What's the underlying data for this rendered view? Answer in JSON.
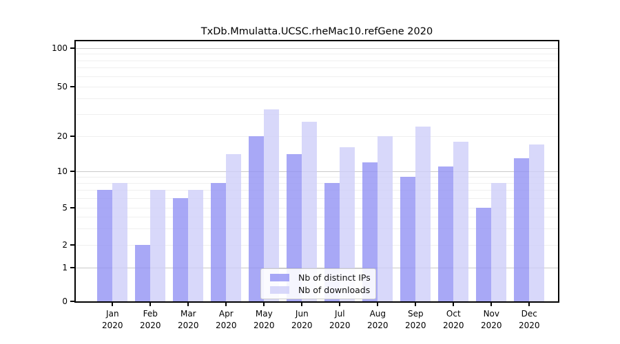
{
  "chart_data": {
    "type": "bar",
    "title": "TxDb.Mmulatta.UCSC.rheMac10.refGene 2020",
    "categories": [
      "Jan",
      "Feb",
      "Mar",
      "Apr",
      "May",
      "Jun",
      "Jul",
      "Aug",
      "Sep",
      "Oct",
      "Nov",
      "Dec"
    ],
    "category_year": "2020",
    "series": [
      {
        "name": "Nb of distinct IPs",
        "color": "#9292f4",
        "alpha": 0.8,
        "values": [
          7,
          2,
          6,
          8,
          20,
          14,
          8,
          12,
          9,
          11,
          5,
          13
        ]
      },
      {
        "name": "Nb of downloads",
        "color": "#cecef9",
        "alpha": 0.8,
        "values": [
          8,
          7,
          7,
          14,
          33,
          26,
          16,
          20,
          24,
          18,
          8,
          17
        ]
      }
    ],
    "y_axis": {
      "scale": "log-like",
      "tick_labels": [
        100,
        50,
        20,
        10,
        5,
        2,
        1,
        0
      ],
      "major_gridlines": [
        1,
        10,
        100
      ],
      "minor_gridlines": [
        2,
        3,
        4,
        5,
        6,
        7,
        8,
        9,
        20,
        30,
        40,
        50,
        60,
        70,
        80,
        90
      ],
      "ylim": [
        0,
        100
      ]
    },
    "x_axis": {
      "label_lines": 2
    },
    "legend": {
      "position": "bottom-center",
      "entries": [
        "Nb of distinct IPs",
        "Nb of downloads"
      ]
    },
    "grid": true
  },
  "colors": {
    "major_grid": "#c9c9c9",
    "minor_grid": "#efefef",
    "spine": "#000000",
    "background": "#ffffff"
  }
}
